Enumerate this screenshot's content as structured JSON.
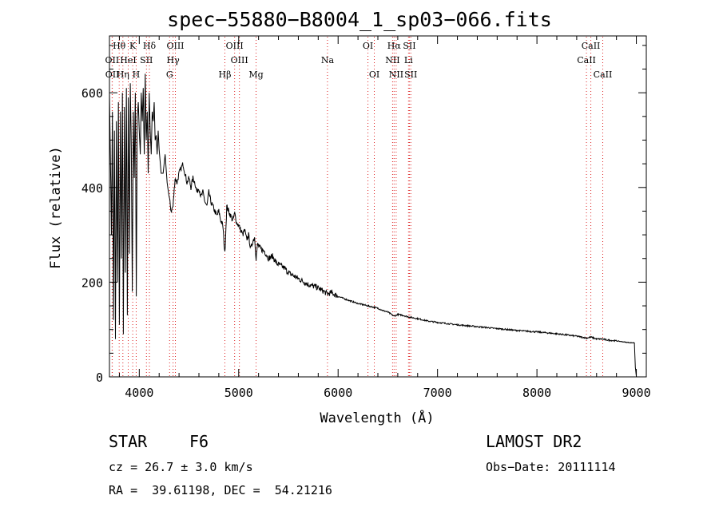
{
  "title": "spec−55880−B8004_1_sp03−066.fits",
  "info": {
    "object_class": "STAR",
    "subclass": "F6",
    "survey": "LAMOST DR2",
    "redshift_text": "cz = 26.7 ± 3.0 km/s",
    "obs_date_text": "Obs−Date: 20111114",
    "coords_text": "RA =  39.61198, DEC =  54.21216"
  },
  "chart_data": {
    "type": "line",
    "xlabel": "Wavelength (Å)",
    "ylabel": "Flux (relative)",
    "xlim": [
      3700,
      9100
    ],
    "ylim": [
      0,
      720
    ],
    "xticks": [
      4000,
      5000,
      6000,
      7000,
      8000,
      9000
    ],
    "yticks": [
      0,
      200,
      400,
      600
    ],
    "series": [
      {
        "color": "#000000",
        "x": [
          3700,
          3710,
          3720,
          3730,
          3740,
          3750,
          3760,
          3770,
          3780,
          3790,
          3800,
          3810,
          3820,
          3830,
          3840,
          3850,
          3860,
          3870,
          3880,
          3890,
          3900,
          3910,
          3920,
          3930,
          3940,
          3950,
          3960,
          3970,
          3980,
          3990,
          4000,
          4010,
          4020,
          4030,
          4040,
          4050,
          4060,
          4070,
          4080,
          4090,
          4100,
          4110,
          4120,
          4130,
          4140,
          4150,
          4160,
          4170,
          4180,
          4190,
          4200,
          4220,
          4240,
          4260,
          4280,
          4300,
          4320,
          4340,
          4360,
          4380,
          4400,
          4420,
          4440,
          4460,
          4480,
          4500,
          4520,
          4540,
          4560,
          4580,
          4600,
          4620,
          4640,
          4660,
          4680,
          4700,
          4720,
          4740,
          4760,
          4780,
          4800,
          4820,
          4840,
          4861,
          4880,
          4900,
          4920,
          4940,
          4960,
          4980,
          5000,
          5020,
          5040,
          5060,
          5080,
          5100,
          5120,
          5140,
          5160,
          5175,
          5190,
          5220,
          5260,
          5300,
          5340,
          5380,
          5420,
          5460,
          5500,
          5540,
          5580,
          5620,
          5660,
          5700,
          5740,
          5780,
          5820,
          5860,
          5893,
          5930,
          6000,
          6100,
          6200,
          6300,
          6400,
          6450,
          6500,
          6563,
          6600,
          6650,
          6700,
          6800,
          6900,
          7000,
          7200,
          7400,
          7600,
          7800,
          8000,
          8200,
          8400,
          8498,
          8542,
          8600,
          8662,
          8700,
          8800,
          8900,
          8950,
          8980,
          8990,
          9000
        ],
        "y": [
          600,
          460,
          300,
          560,
          120,
          520,
          80,
          540,
          200,
          580,
          110,
          560,
          250,
          600,
          90,
          570,
          220,
          610,
          130,
          590,
          260,
          620,
          480,
          180,
          560,
          420,
          600,
          170,
          550,
          580,
          520,
          470,
          600,
          540,
          610,
          470,
          640,
          500,
          560,
          430,
          600,
          520,
          470,
          560,
          540,
          580,
          500,
          510,
          470,
          520,
          480,
          430,
          430,
          470,
          410,
          380,
          350,
          360,
          420,
          410,
          430,
          440,
          450,
          430,
          410,
          420,
          400,
          420,
          410,
          390,
          400,
          380,
          390,
          370,
          360,
          390,
          370,
          360,
          350,
          340,
          350,
          330,
          320,
          260,
          360,
          350,
          340,
          330,
          345,
          325,
          320,
          310,
          300,
          310,
          290,
          300,
          270,
          285,
          295,
          250,
          280,
          270,
          265,
          250,
          255,
          240,
          235,
          230,
          220,
          215,
          210,
          205,
          200,
          195,
          192,
          190,
          185,
          180,
          175,
          178,
          170,
          162,
          155,
          150,
          145,
          140,
          137,
          128,
          132,
          130,
          127,
          123,
          118,
          115,
          110,
          106,
          102,
          98,
          95,
          91,
          86,
          82,
          84,
          80,
          80,
          78,
          76,
          73,
          72,
          72,
          20,
          0
        ]
      }
    ],
    "line_ids": [
      {
        "label": "Hθ",
        "wavelength": 3798,
        "row": 0
      },
      {
        "label": "K",
        "wavelength": 3934,
        "row": 0
      },
      {
        "label": "Hδ",
        "wavelength": 4102,
        "row": 0
      },
      {
        "label": "OIII",
        "wavelength": 4363,
        "row": 0
      },
      {
        "label": "OIII",
        "wavelength": 4959,
        "row": 0
      },
      {
        "label": "OI",
        "wavelength": 6300,
        "row": 0
      },
      {
        "label": "Hα",
        "wavelength": 6563,
        "row": 0
      },
      {
        "label": "SII",
        "wavelength": 6717,
        "row": 0
      },
      {
        "label": "CaII",
        "wavelength": 8542,
        "row": 0
      },
      {
        "label": "OII",
        "wavelength": 3727,
        "row": 1
      },
      {
        "label": "HeI",
        "wavelength": 3889,
        "row": 1
      },
      {
        "label": "SII",
        "wavelength": 4072,
        "row": 1
      },
      {
        "label": "Hγ",
        "wavelength": 4340,
        "row": 1
      },
      {
        "label": "OIII",
        "wavelength": 5007,
        "row": 1
      },
      {
        "label": "Na",
        "wavelength": 5893,
        "row": 1
      },
      {
        "label": "NII",
        "wavelength": 6548,
        "row": 1
      },
      {
        "label": "Li",
        "wavelength": 6708,
        "row": 1
      },
      {
        "label": "CaII",
        "wavelength": 8498,
        "row": 1
      },
      {
        "label": "OII",
        "wavelength": 3729,
        "row": 2
      },
      {
        "label": "Hη",
        "wavelength": 3835,
        "row": 2
      },
      {
        "label": "H",
        "wavelength": 3969,
        "row": 2
      },
      {
        "label": "G",
        "wavelength": 4305,
        "row": 2
      },
      {
        "label": "Hβ",
        "wavelength": 4861,
        "row": 2
      },
      {
        "label": "Mg",
        "wavelength": 5175,
        "row": 2
      },
      {
        "label": "OI",
        "wavelength": 6364,
        "row": 2
      },
      {
        "label": "NII",
        "wavelength": 6584,
        "row": 2
      },
      {
        "label": "SII",
        "wavelength": 6731,
        "row": 2
      },
      {
        "label": "CaII",
        "wavelength": 8662,
        "row": 2
      }
    ]
  }
}
